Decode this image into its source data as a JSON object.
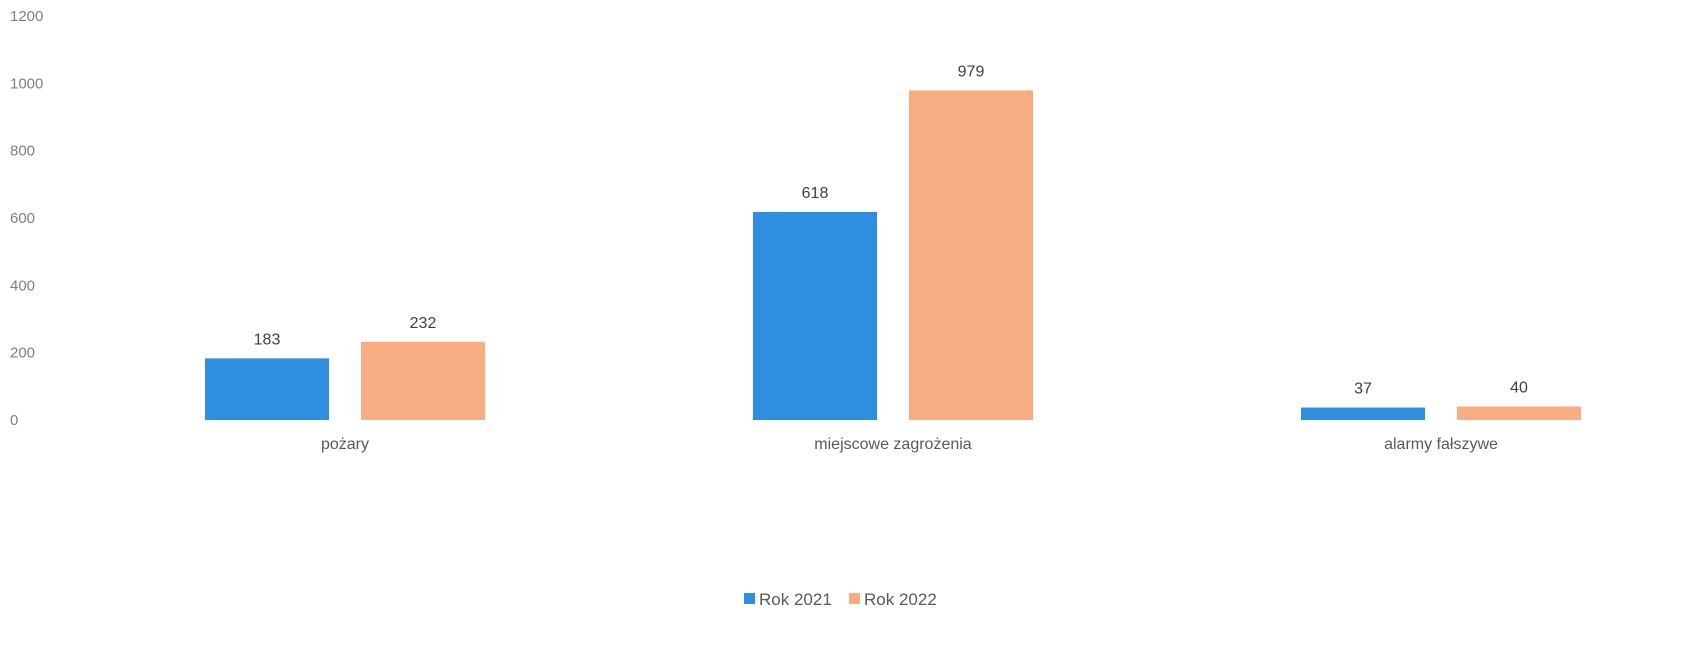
{
  "chart_data": {
    "type": "bar",
    "categories": [
      "pożary",
      "miejscowe zagrożenia",
      "alarmy fałszywe"
    ],
    "series": [
      {
        "name": "Rok 2021",
        "values": [
          183,
          618,
          37
        ],
        "color": "#2e8fe0"
      },
      {
        "name": "Rok 2022",
        "values": [
          232,
          979,
          40
        ],
        "color": "#f8ac82"
      }
    ],
    "yticks": [
      "0",
      "200",
      "400",
      "600",
      "800",
      "1000",
      "1200"
    ],
    "ylim": [
      0,
      1200
    ],
    "grid": false,
    "legend": "bottom-center"
  }
}
